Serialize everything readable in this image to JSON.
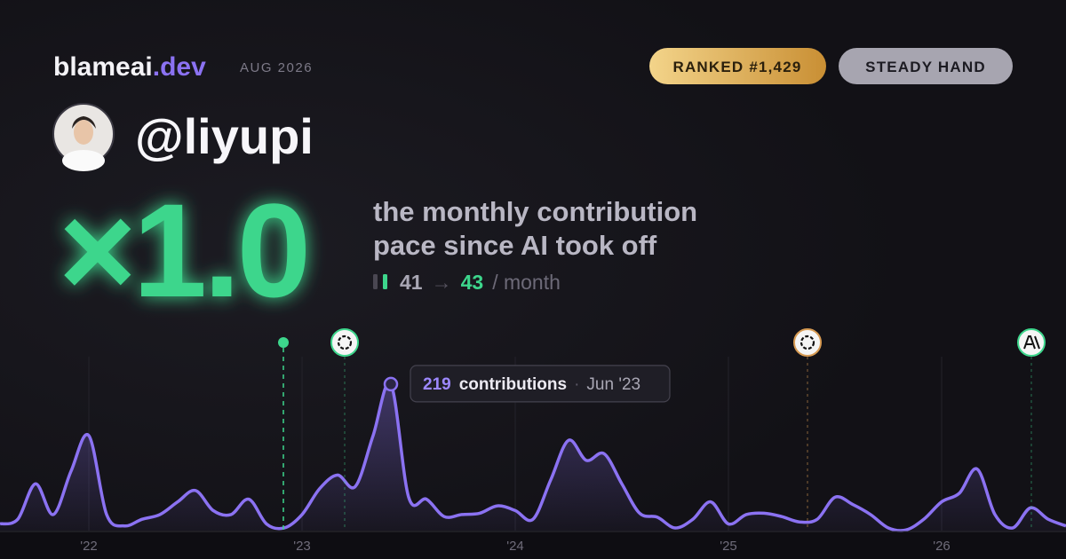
{
  "brand": {
    "name": "blameai",
    "suffix": ".dev",
    "date": "AUG 2026"
  },
  "badges": [
    "RANKED #1,429",
    "STEADY HAND"
  ],
  "user": {
    "handle": "@liyupi"
  },
  "headline": {
    "multiplier": "×1.0",
    "lines": [
      "the monthly contribution",
      "pace since AI took off"
    ]
  },
  "pace": {
    "before": 41,
    "arrow": "→",
    "after": 43,
    "unit": "/ month"
  },
  "chart_data": {
    "type": "area",
    "color": "#8b72f2",
    "categories": [
      null,
      null,
      null,
      null,
      null,
      "'22",
      null,
      null,
      null,
      null,
      null,
      null,
      null,
      null,
      null,
      null,
      null,
      "'23",
      null,
      null,
      null,
      null,
      null,
      null,
      null,
      null,
      null,
      null,
      null,
      "'24",
      null,
      null,
      null,
      null,
      null,
      null,
      null,
      null,
      null,
      null,
      null,
      "'25",
      null,
      null,
      null,
      null,
      null,
      null,
      null,
      null,
      null,
      null,
      null,
      "'26",
      null,
      null,
      null,
      null,
      null,
      null,
      null
    ],
    "values": [
      10,
      17,
      70,
      24,
      89,
      142,
      24,
      7,
      17,
      24,
      43,
      60,
      30,
      24,
      47,
      10,
      4,
      24,
      63,
      83,
      66,
      142,
      219,
      50,
      47,
      21,
      24,
      26,
      37,
      30,
      17,
      76,
      135,
      105,
      115,
      70,
      26,
      20,
      4,
      17,
      43,
      10,
      24,
      26,
      21,
      13,
      17,
      50,
      39,
      24,
      4,
      1,
      17,
      43,
      56,
      92,
      24,
      4,
      34,
      17,
      7
    ],
    "ylim": [
      0,
      260
    ],
    "grid": true,
    "tooltip": {
      "label": "contributions",
      "date": "Jun '23"
    }
  }
}
